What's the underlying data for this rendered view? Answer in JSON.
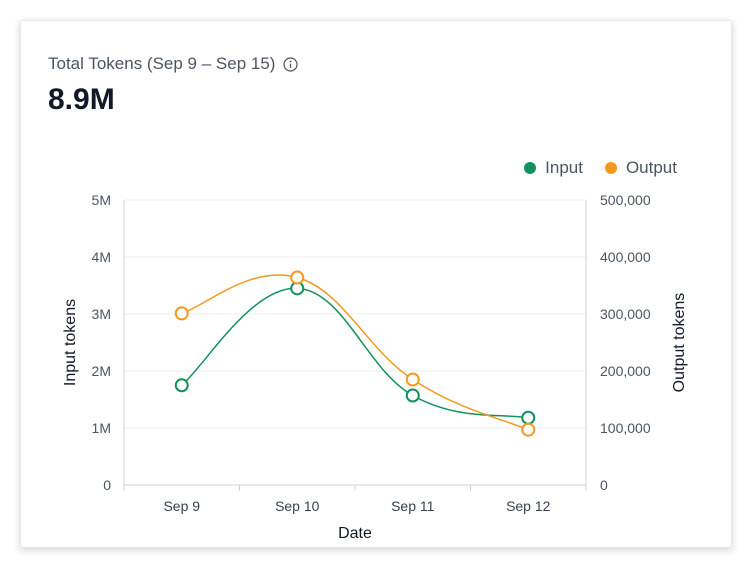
{
  "card": {
    "title": "Total Tokens (Sep 9 – Sep 15)",
    "total": "8.9M"
  },
  "colors": {
    "input": "#12925a",
    "output": "#f39a1e",
    "grid": "#ececec",
    "axis": "#d0d0d0"
  },
  "chart_data": {
    "type": "line",
    "categories": [
      "Sep 9",
      "Sep 10",
      "Sep 11",
      "Sep 12"
    ],
    "xlabel": "Date",
    "series": [
      {
        "name": "Input",
        "axis": "left",
        "values": [
          1750000,
          3450000,
          1570000,
          1180000
        ]
      },
      {
        "name": "Output",
        "axis": "right",
        "values": [
          301000,
          364000,
          185000,
          97000
        ]
      }
    ],
    "left_axis": {
      "label": "Input tokens",
      "ylim": [
        0,
        5000000
      ],
      "ticks": [
        "0",
        "1M",
        "2M",
        "3M",
        "4M",
        "5M"
      ]
    },
    "right_axis": {
      "label": "Output tokens",
      "ylim": [
        0,
        500000
      ],
      "ticks": [
        "0",
        "100,000",
        "200,000",
        "300,000",
        "400,000",
        "500,000"
      ]
    },
    "legend": {
      "position": "top-right",
      "entries": [
        "Input",
        "Output"
      ]
    },
    "grid": true
  }
}
